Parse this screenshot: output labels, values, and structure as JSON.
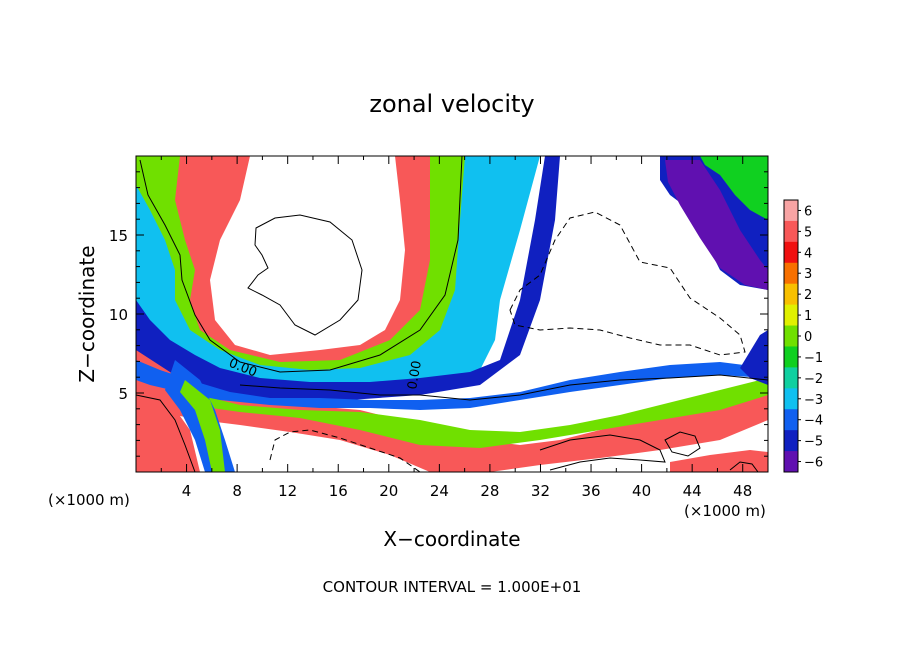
{
  "chart_data": {
    "type": "heatmap",
    "title": "zonal velocity",
    "xlabel": "X−coordinate",
    "ylabel": "Z−coordinate",
    "x_unit_left": "(×1000 m)",
    "x_unit_right": "(×1000 m)",
    "xlim": [
      0,
      50
    ],
    "ylim": [
      0,
      20
    ],
    "x_ticks": [
      4,
      8,
      12,
      16,
      20,
      24,
      28,
      32,
      36,
      40,
      44,
      48
    ],
    "y_ticks": [
      5,
      10,
      15
    ],
    "contour_label_1": "0.00",
    "contour_label_2": "0.00",
    "colorbar": {
      "levels": [
        6,
        5,
        4,
        3,
        2,
        1,
        0,
        -1,
        -2,
        -3,
        -4,
        -5,
        -6
      ],
      "labels": [
        "6",
        "5",
        "4",
        "3",
        "2",
        "1",
        "0",
        "−1",
        "−2",
        "−3",
        "−4",
        "−5",
        "−6"
      ],
      "colors": [
        "#f8a4a4",
        "#f85858",
        "#f01010",
        "#f87000",
        "#f8c000",
        "#e0f000",
        "#70e000",
        "#10d020",
        "#10d0a0",
        "#10c0f0",
        "#1060f0",
        "#1020c0",
        "#6010b0"
      ]
    },
    "footnote": "CONTOUR INTERVAL = 1.000E+01"
  }
}
